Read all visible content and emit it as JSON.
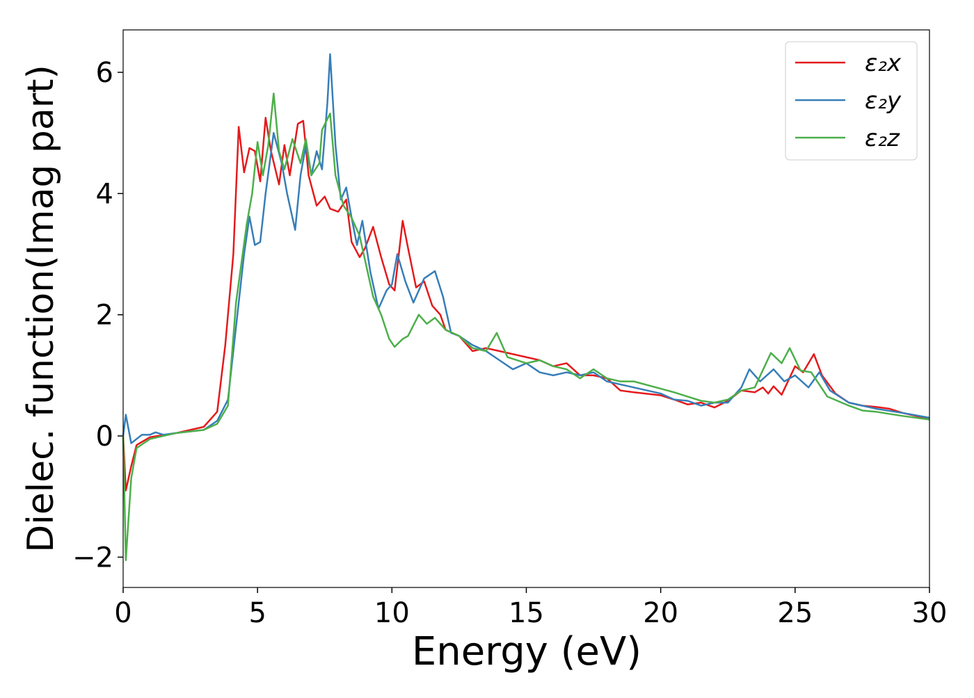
{
  "chart_data": {
    "type": "line",
    "xlabel": "Energy (eV)",
    "ylabel": "Dielec. function(Imag part)",
    "xlim": [
      0,
      30
    ],
    "ylim": [
      -2.5,
      6.7
    ],
    "xticks": [
      0,
      5,
      10,
      15,
      20,
      25,
      30
    ],
    "yticks": [
      {
        "value": -2,
        "label": "−2"
      },
      0,
      2,
      4,
      6
    ],
    "legend": "upper right",
    "series": [
      {
        "name": "ε₂x",
        "color": "#e41a1c",
        "x": [
          0,
          0.1,
          0.3,
          0.5,
          1,
          2,
          3,
          3.5,
          3.8,
          4.1,
          4.3,
          4.5,
          4.7,
          4.9,
          5.1,
          5.3,
          5.5,
          5.8,
          6,
          6.2,
          6.5,
          6.7,
          6.9,
          7.2,
          7.5,
          7.7,
          8,
          8.3,
          8.5,
          8.8,
          9,
          9.3,
          9.6,
          9.9,
          10.1,
          10.4,
          10.6,
          10.9,
          11.2,
          11.5,
          11.8,
          12,
          12.5,
          13,
          13.5,
          14,
          14.5,
          15,
          15.5,
          16,
          16.5,
          17,
          17.5,
          18,
          18.5,
          19,
          20,
          20.5,
          21,
          21.5,
          22,
          22.5,
          23,
          23.5,
          23.8,
          24,
          24.2,
          24.5,
          25,
          25.3,
          25.7,
          26,
          26.5,
          27,
          27.5,
          28,
          28.5,
          29,
          29.5,
          30
        ],
        "values": [
          0,
          -0.9,
          -0.5,
          -0.15,
          -0.02,
          0.05,
          0.15,
          0.4,
          1.5,
          3,
          5.1,
          4.35,
          4.75,
          4.7,
          4.2,
          5.25,
          4.7,
          4.15,
          4.8,
          4.3,
          5.15,
          5.2,
          4.3,
          3.8,
          3.95,
          3.75,
          3.7,
          3.9,
          3.2,
          2.95,
          3.1,
          3.45,
          2.95,
          2.5,
          2.4,
          3.55,
          3.1,
          2.45,
          2.55,
          2.15,
          2.0,
          1.75,
          1.65,
          1.4,
          1.45,
          1.4,
          1.35,
          1.3,
          1.25,
          1.15,
          1.2,
          1.0,
          1.0,
          0.95,
          0.75,
          0.72,
          0.67,
          0.6,
          0.52,
          0.55,
          0.47,
          0.58,
          0.75,
          0.72,
          0.8,
          0.7,
          0.82,
          0.68,
          1.15,
          1.05,
          1.35,
          1.0,
          0.7,
          0.55,
          0.5,
          0.48,
          0.45,
          0.38,
          0.33,
          0.28
        ]
      },
      {
        "name": "ε₂y",
        "color": "#377eb8",
        "x": [
          0,
          0.1,
          0.3,
          0.7,
          1,
          1.2,
          1.5,
          2,
          3,
          3.5,
          3.9,
          4.2,
          4.5,
          4.7,
          4.9,
          5.1,
          5.3,
          5.6,
          5.9,
          6.1,
          6.4,
          6.6,
          6.8,
          7,
          7.2,
          7.4,
          7.6,
          7.7,
          7.9,
          8.1,
          8.3,
          8.5,
          8.7,
          8.9,
          9.2,
          9.5,
          9.8,
          10,
          10.2,
          10.5,
          10.8,
          11.2,
          11.6,
          11.9,
          12.2,
          12.5,
          13,
          13.5,
          14,
          14.5,
          15,
          15.5,
          16,
          16.5,
          17,
          17.5,
          18,
          18.5,
          19,
          20,
          20.5,
          21,
          21.5,
          22,
          22.5,
          23,
          23.3,
          23.7,
          24.2,
          24.6,
          25,
          25.5,
          25.9,
          26.3,
          27,
          27.5,
          28,
          29,
          30
        ],
        "values": [
          0,
          0.35,
          -0.12,
          0.02,
          0.02,
          0.06,
          0.02,
          0.05,
          0.1,
          0.25,
          0.6,
          1.8,
          3.0,
          3.62,
          3.15,
          3.2,
          4.0,
          5.0,
          4.5,
          4.0,
          3.4,
          4.3,
          4.8,
          4.3,
          4.7,
          4.4,
          5.5,
          6.3,
          4.8,
          3.9,
          4.1,
          3.6,
          3.15,
          3.55,
          2.7,
          2.1,
          2.4,
          2.5,
          3.0,
          2.55,
          2.2,
          2.6,
          2.72,
          2.3,
          1.7,
          1.65,
          1.5,
          1.4,
          1.25,
          1.1,
          1.2,
          1.05,
          1.0,
          1.05,
          1.0,
          1.05,
          0.9,
          0.85,
          0.8,
          0.7,
          0.6,
          0.58,
          0.5,
          0.55,
          0.55,
          0.8,
          1.1,
          0.9,
          1.1,
          0.9,
          1.0,
          0.8,
          1.05,
          0.75,
          0.55,
          0.5,
          0.45,
          0.38,
          0.3
        ]
      },
      {
        "name": "ε₂z",
        "color": "#4daf4a",
        "x": [
          0,
          0.1,
          0.3,
          0.5,
          1,
          2,
          3,
          3.5,
          3.9,
          4.2,
          4.6,
          4.8,
          5,
          5.2,
          5.4,
          5.6,
          5.8,
          6,
          6.3,
          6.6,
          6.8,
          7,
          7.3,
          7.4,
          7.7,
          7.9,
          8.2,
          8.5,
          8.8,
          9,
          9.3,
          9.6,
          9.9,
          10.1,
          10.4,
          10.6,
          11,
          11.3,
          11.6,
          12,
          12.5,
          13,
          13.5,
          13.9,
          14.3,
          15,
          15.5,
          16,
          16.5,
          17,
          17.5,
          18,
          18.5,
          19,
          20,
          20.5,
          21,
          21.5,
          22,
          22.5,
          23,
          23.5,
          24.1,
          24.5,
          24.8,
          25.2,
          25.6,
          26.2,
          27,
          27.5,
          28,
          29,
          30
        ],
        "values": [
          0,
          -2.05,
          -0.7,
          -0.2,
          -0.05,
          0.05,
          0.1,
          0.2,
          0.5,
          2.2,
          3.5,
          4.0,
          4.85,
          4.3,
          4.8,
          5.65,
          4.7,
          4.4,
          4.9,
          4.5,
          4.9,
          4.3,
          4.5,
          5.05,
          5.32,
          4.3,
          3.8,
          3.6,
          3.3,
          2.9,
          2.3,
          2.0,
          1.6,
          1.47,
          1.6,
          1.65,
          2.0,
          1.85,
          1.95,
          1.75,
          1.65,
          1.45,
          1.4,
          1.7,
          1.3,
          1.2,
          1.25,
          1.15,
          1.1,
          0.95,
          1.1,
          0.95,
          0.9,
          0.9,
          0.78,
          0.72,
          0.65,
          0.58,
          0.55,
          0.6,
          0.75,
          0.8,
          1.37,
          1.2,
          1.45,
          1.08,
          1.05,
          0.65,
          0.5,
          0.42,
          0.4,
          0.33,
          0.27
        ]
      }
    ]
  }
}
